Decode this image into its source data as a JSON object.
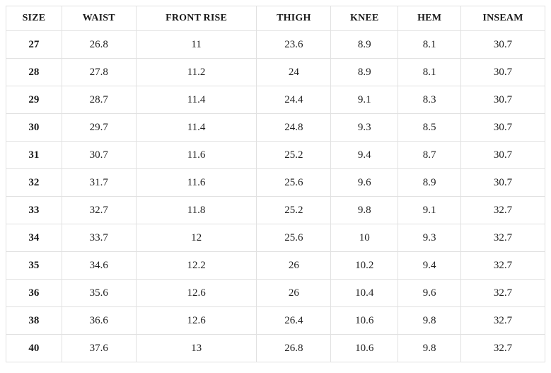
{
  "table": {
    "name": "size-measurement-chart",
    "columns": [
      "SIZE",
      "WAIST",
      "FRONT RISE",
      "THIGH",
      "KNEE",
      "HEM",
      "INSEAM"
    ],
    "rows": [
      [
        "27",
        "26.8",
        "11",
        "23.6",
        "8.9",
        "8.1",
        "30.7"
      ],
      [
        "28",
        "27.8",
        "11.2",
        "24",
        "8.9",
        "8.1",
        "30.7"
      ],
      [
        "29",
        "28.7",
        "11.4",
        "24.4",
        "9.1",
        "8.3",
        "30.7"
      ],
      [
        "30",
        "29.7",
        "11.4",
        "24.8",
        "9.3",
        "8.5",
        "30.7"
      ],
      [
        "31",
        "30.7",
        "11.6",
        "25.2",
        "9.4",
        "8.7",
        "30.7"
      ],
      [
        "32",
        "31.7",
        "11.6",
        "25.6",
        "9.6",
        "8.9",
        "30.7"
      ],
      [
        "33",
        "32.7",
        "11.8",
        "25.2",
        "9.8",
        "9.1",
        "32.7"
      ],
      [
        "34",
        "33.7",
        "12",
        "25.6",
        "10",
        "9.3",
        "32.7"
      ],
      [
        "35",
        "34.6",
        "12.2",
        "26",
        "10.2",
        "9.4",
        "32.7"
      ],
      [
        "36",
        "35.6",
        "12.6",
        "26",
        "10.4",
        "9.6",
        "32.7"
      ],
      [
        "38",
        "36.6",
        "12.6",
        "26.4",
        "10.6",
        "9.8",
        "32.7"
      ],
      [
        "40",
        "37.6",
        "13",
        "26.8",
        "10.6",
        "9.8",
        "32.7"
      ]
    ]
  },
  "colors": {
    "border": "#e1e1e1",
    "header_text": "#1a1a1a",
    "body_text": "#222222",
    "background": "#ffffff"
  }
}
